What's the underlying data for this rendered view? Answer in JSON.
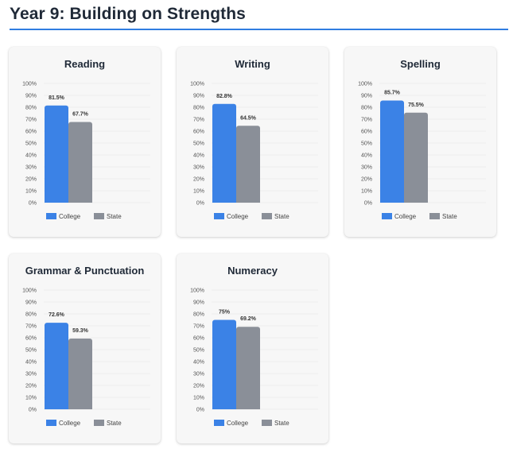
{
  "page": {
    "title": "Year 9: Building on Strengths",
    "accent_color": "#2f7de1"
  },
  "legend": {
    "college_label": "College",
    "state_label": "State",
    "college_color": "#3b82e6",
    "state_color": "#8a8f98"
  },
  "chart_data": [
    {
      "type": "bar",
      "title": "Reading",
      "categories": [
        ""
      ],
      "series": [
        {
          "name": "College",
          "values": [
            81.5
          ],
          "labels": [
            "81.5%"
          ]
        },
        {
          "name": "State",
          "values": [
            67.7
          ],
          "labels": [
            "67.7%"
          ]
        }
      ],
      "ylim": [
        0,
        100
      ],
      "yticks": [
        "0%",
        "10%",
        "20%",
        "30%",
        "40%",
        "50%",
        "60%",
        "70%",
        "80%",
        "90%",
        "100%"
      ],
      "legend_position": "bottom"
    },
    {
      "type": "bar",
      "title": "Writing",
      "categories": [
        ""
      ],
      "series": [
        {
          "name": "College",
          "values": [
            82.8
          ],
          "labels": [
            "82.8%"
          ]
        },
        {
          "name": "State",
          "values": [
            64.5
          ],
          "labels": [
            "64.5%"
          ]
        }
      ],
      "ylim": [
        0,
        100
      ],
      "yticks": [
        "0%",
        "10%",
        "20%",
        "30%",
        "40%",
        "50%",
        "60%",
        "70%",
        "80%",
        "90%",
        "100%"
      ],
      "legend_position": "bottom"
    },
    {
      "type": "bar",
      "title": "Spelling",
      "categories": [
        ""
      ],
      "series": [
        {
          "name": "College",
          "values": [
            85.7
          ],
          "labels": [
            "85.7%"
          ]
        },
        {
          "name": "State",
          "values": [
            75.5
          ],
          "labels": [
            "75.5%"
          ]
        }
      ],
      "ylim": [
        0,
        100
      ],
      "yticks": [
        "0%",
        "10%",
        "20%",
        "30%",
        "40%",
        "50%",
        "60%",
        "70%",
        "80%",
        "90%",
        "100%"
      ],
      "legend_position": "bottom"
    },
    {
      "type": "bar",
      "title": "Grammar & Punctuation",
      "categories": [
        ""
      ],
      "series": [
        {
          "name": "College",
          "values": [
            72.6
          ],
          "labels": [
            "72.6%"
          ]
        },
        {
          "name": "State",
          "values": [
            59.3
          ],
          "labels": [
            "59.3%"
          ]
        }
      ],
      "ylim": [
        0,
        100
      ],
      "yticks": [
        "0%",
        "10%",
        "20%",
        "30%",
        "40%",
        "50%",
        "60%",
        "70%",
        "80%",
        "90%",
        "100%"
      ],
      "legend_position": "bottom"
    },
    {
      "type": "bar",
      "title": "Numeracy",
      "categories": [
        ""
      ],
      "series": [
        {
          "name": "College",
          "values": [
            75
          ],
          "labels": [
            "75%"
          ]
        },
        {
          "name": "State",
          "values": [
            69.2
          ],
          "labels": [
            "69.2%"
          ]
        }
      ],
      "ylim": [
        0,
        100
      ],
      "yticks": [
        "0%",
        "10%",
        "20%",
        "30%",
        "40%",
        "50%",
        "60%",
        "70%",
        "80%",
        "90%",
        "100%"
      ],
      "legend_position": "bottom"
    }
  ]
}
